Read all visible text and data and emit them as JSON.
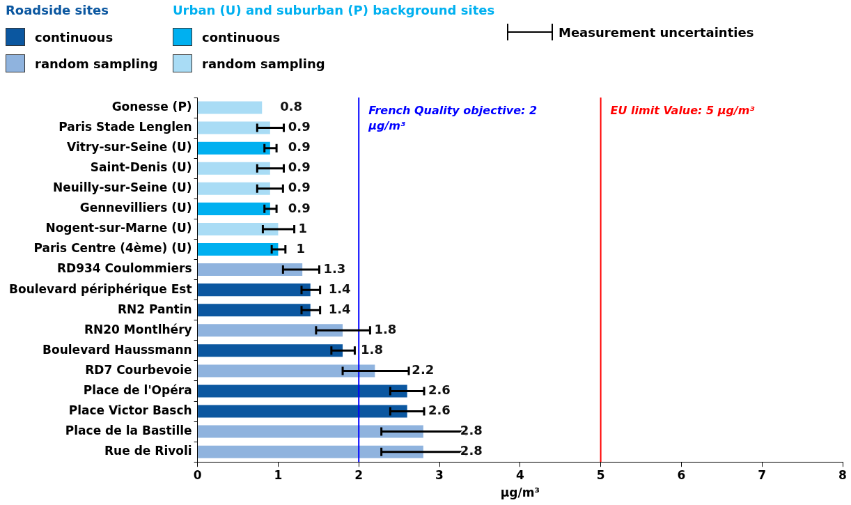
{
  "chart_data": {
    "type": "bar",
    "orientation": "horizontal",
    "stacked": true,
    "categories": [
      "Gonesse (P)",
      "Paris Stade Lenglen",
      "Vitry-sur-Seine (U)",
      "Saint-Denis (U)",
      "Neuilly-sur-Seine (U)",
      "Gennevilliers (U)",
      "Nogent-sur-Marne (U)",
      "Paris Centre (4ème) (U)",
      "RD934 Coulommiers",
      "Boulevard périphérique Est",
      "RN2 Pantin",
      "RN20 Montlhéry",
      "Boulevard Haussmann",
      "RD7 Courbevoie",
      "Place de l'Opéra",
      "Place Victor Basch",
      "Place de la Bastille",
      "Rue de Rivoli"
    ],
    "series": [
      {
        "name": "continuous",
        "color": "#0b57a0",
        "values": [
          null,
          null,
          null,
          null,
          null,
          null,
          null,
          null,
          null,
          1.4,
          1.4,
          null,
          1.8,
          null,
          2.6,
          2.6,
          null,
          null
        ],
        "errors": [
          null,
          null,
          null,
          null,
          null,
          null,
          null,
          null,
          null,
          [
            1.29,
            1.52
          ],
          [
            1.29,
            1.52
          ],
          null,
          [
            1.66,
            1.95
          ],
          null,
          [
            2.39,
            2.81
          ],
          [
            2.39,
            2.81
          ],
          null,
          null
        ]
      },
      {
        "name": "random sampling",
        "color": "#8fb3de",
        "values": [
          null,
          null,
          null,
          null,
          null,
          null,
          null,
          null,
          1.3,
          null,
          null,
          1.8,
          null,
          2.2,
          null,
          null,
          2.8,
          2.8
        ],
        "errors": [
          null,
          null,
          null,
          null,
          null,
          null,
          null,
          null,
          [
            1.06,
            1.51
          ],
          null,
          null,
          [
            1.47,
            2.14
          ],
          null,
          [
            1.8,
            2.62
          ],
          null,
          null,
          [
            2.28,
            3.33
          ],
          [
            2.28,
            3.33
          ]
        ]
      },
      {
        "name": "continuous",
        "color": "#00b0f0",
        "values": [
          null,
          null,
          0.9,
          null,
          null,
          0.9,
          null,
          1.0,
          null,
          null,
          null,
          null,
          null,
          null,
          null,
          null,
          null,
          null
        ],
        "errors": [
          null,
          null,
          [
            0.83,
            0.98
          ],
          null,
          null,
          [
            0.83,
            0.98
          ],
          null,
          [
            0.92,
            1.09
          ],
          null,
          null,
          null,
          null,
          null,
          null,
          null,
          null,
          null,
          null
        ]
      },
      {
        "name": "random sampling",
        "color": "#a9dcf5",
        "values": [
          0.8,
          0.9,
          null,
          0.9,
          0.9,
          null,
          1.0,
          null,
          null,
          null,
          null,
          null,
          null,
          null,
          null,
          null,
          null,
          null
        ],
        "errors": [
          null,
          [
            0.74,
            1.07
          ],
          null,
          [
            0.74,
            1.07
          ],
          [
            0.74,
            1.06
          ],
          null,
          [
            0.81,
            1.2
          ],
          null,
          null,
          null,
          null,
          null,
          null,
          null,
          null,
          null,
          null,
          null
        ]
      }
    ],
    "xlim": [
      0,
      8
    ],
    "xticks": [
      0,
      1,
      2,
      3,
      4,
      5,
      6,
      7,
      8
    ],
    "xlabel": "µg/m³",
    "ref_lines": [
      {
        "axis": "x",
        "value": 2,
        "label": "French Quality objective: 2 µg/m³",
        "color": "#0000ff"
      },
      {
        "axis": "x",
        "value": 5,
        "label": "EU limit Value: 5 µg/m³",
        "color": "#ff0000"
      }
    ],
    "data_labels": true,
    "grid": false,
    "legend": "top left",
    "annotations": [
      "Roadside sites",
      "Urban (U) and suburban (P) background sites",
      "Measurement uncertainties"
    ]
  }
}
